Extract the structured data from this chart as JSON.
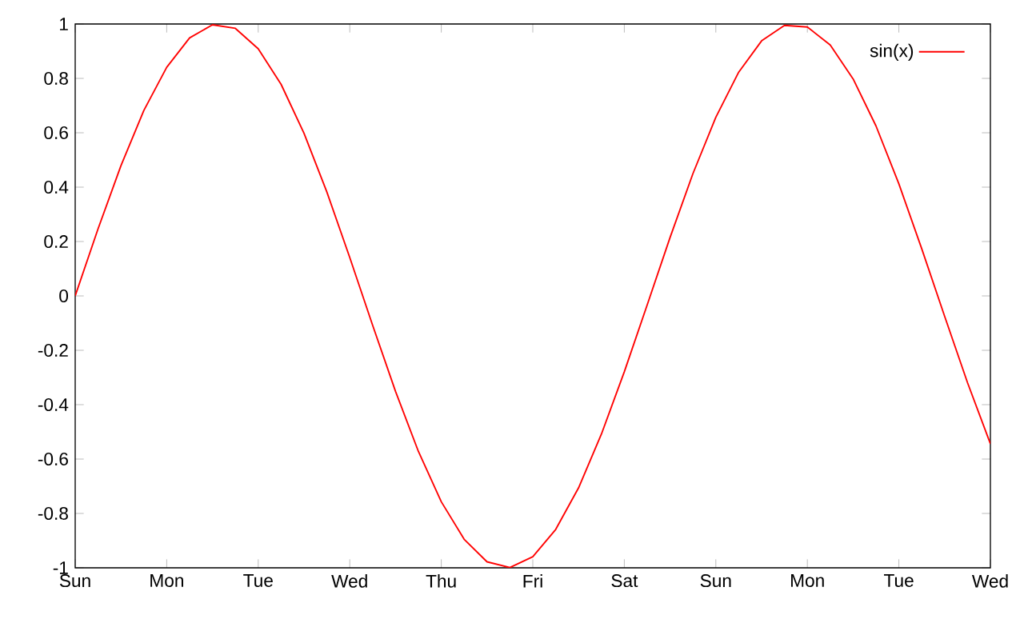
{
  "chart_data": {
    "type": "line",
    "ylim": [
      -1,
      1
    ],
    "categories": [
      "Sun",
      null,
      null,
      null,
      "Mon",
      null,
      null,
      null,
      "Tue",
      null,
      null,
      null,
      "Wed",
      null,
      null,
      null,
      "Thu",
      null,
      null,
      null,
      "Fri",
      null,
      null,
      null,
      "Sat",
      null,
      null,
      null,
      "Sun",
      null,
      null,
      null,
      "Mon",
      null,
      null,
      null,
      "Tue",
      null,
      null,
      null,
      "Wed"
    ],
    "yticks": [
      -1,
      -0.8,
      -0.6,
      -0.4,
      -0.2,
      0,
      0.2,
      0.4,
      0.6,
      0.8,
      1
    ],
    "legend": "top right",
    "grid": false,
    "series": [
      {
        "name": "sin(x)",
        "color": "#ff0000",
        "values": [
          0,
          0.247,
          0.479,
          0.682,
          0.841,
          0.949,
          0.997,
          0.984,
          0.909,
          0.778,
          0.598,
          0.382,
          0.141,
          -0.108,
          -0.351,
          -0.572,
          -0.757,
          -0.895,
          -0.978,
          -0.999,
          -0.959,
          -0.859,
          -0.706,
          -0.508,
          -0.279,
          -0.033,
          0.215,
          0.45,
          0.657,
          0.823,
          0.938,
          0.995,
          0.989,
          0.923,
          0.798,
          0.625,
          0.412,
          0.173,
          -0.075,
          -0.319,
          -0.544
        ]
      }
    ]
  }
}
